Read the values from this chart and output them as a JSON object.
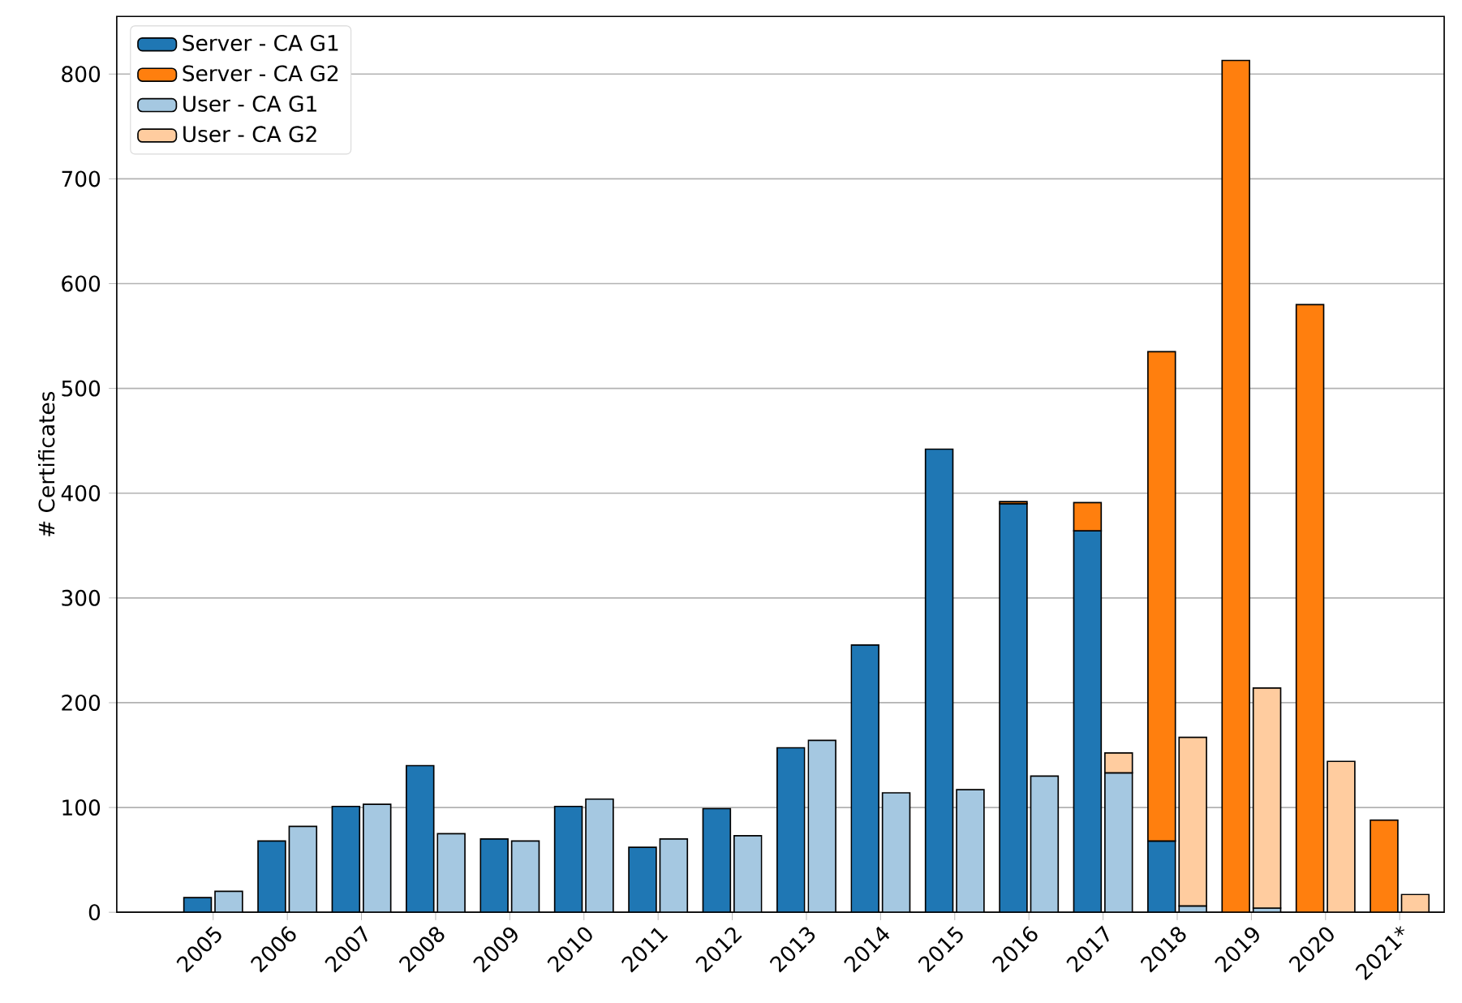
{
  "chart_data": {
    "type": "bar",
    "ylabel": "# Certificates",
    "categories": [
      "2005",
      "2006",
      "2007",
      "2008",
      "2009",
      "2010",
      "2011",
      "2012",
      "2013",
      "2014",
      "2015",
      "2016",
      "2017",
      "2018",
      "2019",
      "2020",
      "2021*"
    ],
    "series": [
      {
        "name": "Server - CA G1",
        "color": "#1f77b4",
        "values": [
          14,
          68,
          101,
          140,
          70,
          101,
          62,
          99,
          157,
          255,
          442,
          390,
          364,
          68,
          null,
          null,
          null
        ]
      },
      {
        "name": "Server - CA G2",
        "color": "#ff7f0e",
        "values": [
          null,
          null,
          null,
          null,
          null,
          null,
          null,
          null,
          null,
          null,
          null,
          2,
          27,
          467,
          813,
          580,
          88
        ],
        "base": [
          null,
          null,
          null,
          null,
          null,
          null,
          null,
          null,
          null,
          null,
          null,
          390,
          364,
          68,
          0,
          0,
          0
        ]
      },
      {
        "name": "User - CA G1",
        "color": "#a5c8e1",
        "values": [
          20,
          82,
          103,
          75,
          68,
          108,
          70,
          73,
          164,
          114,
          117,
          130,
          133,
          6,
          4,
          null,
          null
        ]
      },
      {
        "name": "User - CA G2",
        "color": "#ffcc9f",
        "values": [
          null,
          null,
          null,
          null,
          null,
          null,
          null,
          null,
          null,
          null,
          null,
          null,
          19,
          161,
          210,
          144,
          17
        ],
        "base": [
          null,
          null,
          null,
          null,
          null,
          null,
          null,
          null,
          null,
          null,
          null,
          null,
          133,
          6,
          4,
          0,
          0
        ]
      }
    ],
    "ylim": [
      0,
      855
    ],
    "yticks": [
      0,
      100,
      200,
      300,
      400,
      500,
      600,
      700,
      800
    ],
    "grid": "y",
    "legend": "top left"
  }
}
